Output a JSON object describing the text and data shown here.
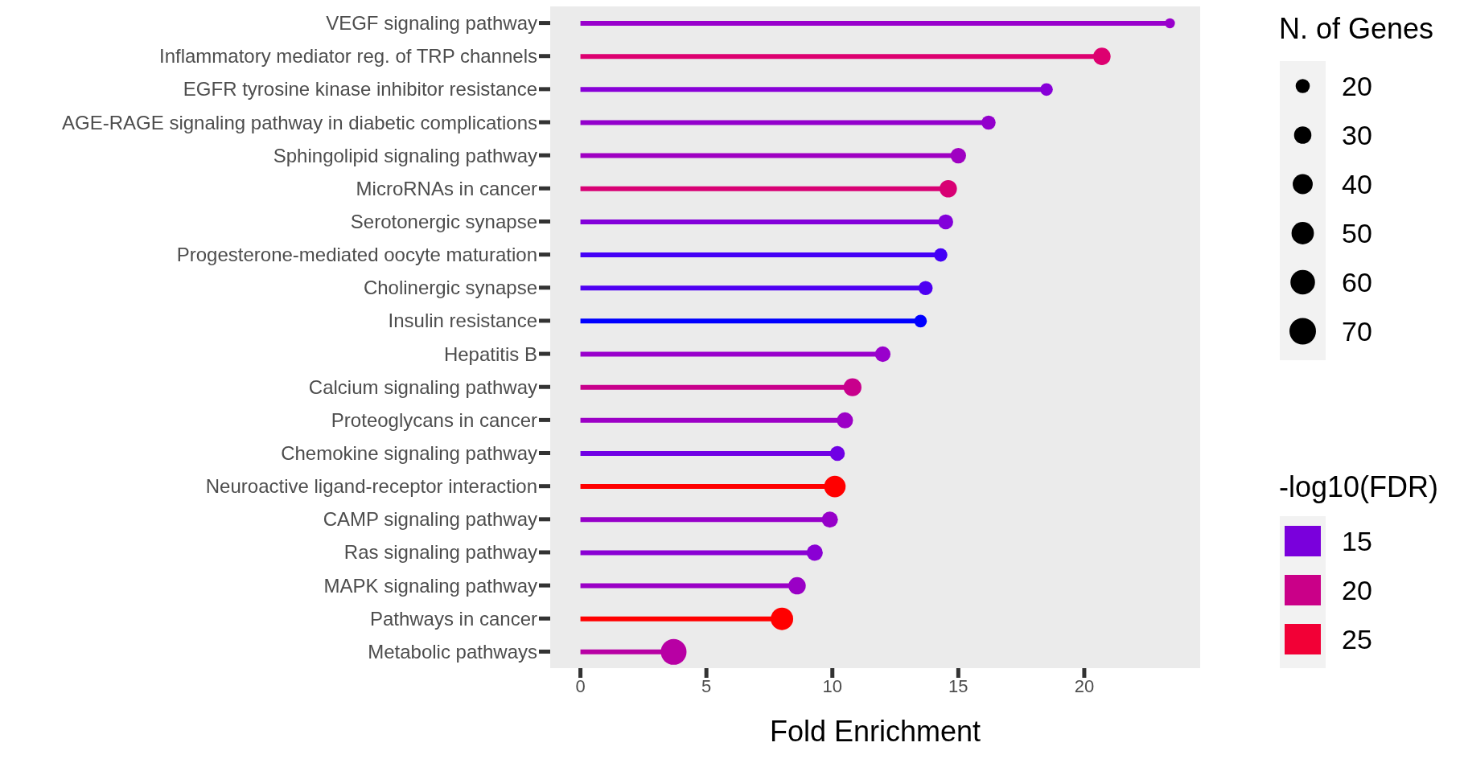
{
  "chart_data": {
    "type": "lollipop",
    "orientation": "horizontal",
    "xlabel": "Fold Enrichment",
    "legend_title": "N. of Genes",
    "clabel": "-log10(FDR)",
    "categories": [
      "VEGF signaling pathway",
      "Inflammatory mediator reg. of TRP channels",
      "EGFR tyrosine kinase inhibitor resistance",
      "AGE-RAGE signaling pathway in diabetic complications",
      "Sphingolipid signaling pathway",
      "MicroRNAs in cancer",
      "Serotonergic synapse",
      "Progesterone-mediated oocyte maturation",
      "Cholinergic synapse",
      "Insulin resistance",
      "Hepatitis B",
      "Calcium signaling pathway",
      "Proteoglycans in cancer",
      "Chemokine signaling pathway",
      "Neuroactive ligand-receptor interaction",
      "CAMP signaling pathway",
      "Ras signaling pathway",
      "MAPK signaling pathway",
      "Pathways in cancer",
      "Metabolic pathways"
    ],
    "values": [
      23.4,
      20.7,
      18.5,
      16.2,
      15.0,
      14.6,
      14.5,
      14.3,
      13.7,
      13.5,
      12.0,
      10.8,
      10.5,
      10.2,
      10.1,
      9.9,
      9.3,
      8.6,
      8.0,
      3.7
    ],
    "sizes": [
      10,
      30,
      16,
      20,
      24,
      30,
      22,
      18,
      20,
      16,
      24,
      32,
      26,
      22,
      46,
      26,
      26,
      30,
      50,
      66
    ],
    "size_legend": [
      20,
      30,
      40,
      50,
      60,
      70
    ],
    "colors": [
      "#9900cc",
      "#dd0070",
      "#8800d8",
      "#9300cc",
      "#9f00c2",
      "#d80074",
      "#8300da",
      "#4400f6",
      "#4e00f2",
      "#0000ff",
      "#9900cc",
      "#c8008c",
      "#9c00c6",
      "#7000e4",
      "#ff0000",
      "#9600c9",
      "#8a00d4",
      "#9a00c6",
      "#ff0000",
      "#b800a4"
    ],
    "clim": [
      13,
      27
    ],
    "cticks": [
      15,
      20,
      25
    ],
    "xlim": [
      -1.2,
      24.6
    ],
    "xticks": [
      0,
      5,
      10,
      15,
      20
    ]
  }
}
